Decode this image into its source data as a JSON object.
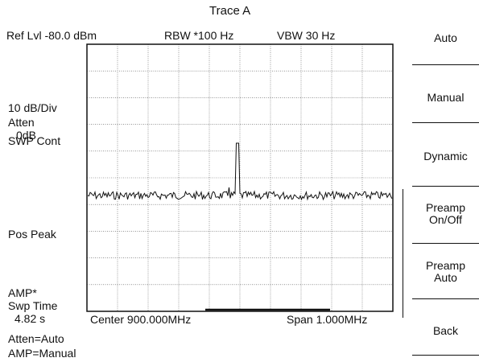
{
  "header": {
    "trace_title": "Trace A",
    "ref_level": "Ref Lvl -80.0 dBm",
    "rbw": "RBW  *100 Hz",
    "vbw": "VBW  30 Hz"
  },
  "left_panel": {
    "scale": "10 dB/Div",
    "atten_label": "Atten",
    "atten_value": "0dB",
    "sweep_mode": "SWP Cont",
    "detection": "Pos Peak",
    "amp": "AMP*",
    "swp_time_label": "Swp Time",
    "swp_time_value": "4.82 s"
  },
  "bottom_status": {
    "center": "Center  900.000MHz",
    "span": "Span   1.000MHz",
    "atten_mode": "Atten=Auto",
    "amp_mode": "AMP=Manual"
  },
  "softkeys": [
    {
      "label": "Auto"
    },
    {
      "label": "Manual"
    },
    {
      "label": "Dynamic"
    },
    {
      "label_line1": "Preamp",
      "label_line2": "On/Off"
    },
    {
      "label_line1": "Preamp",
      "label_line2": "Auto"
    },
    {
      "label": "Back"
    }
  ],
  "colors": {
    "ink": "#111111",
    "grid": "#555555",
    "background": "#ffffff"
  }
}
